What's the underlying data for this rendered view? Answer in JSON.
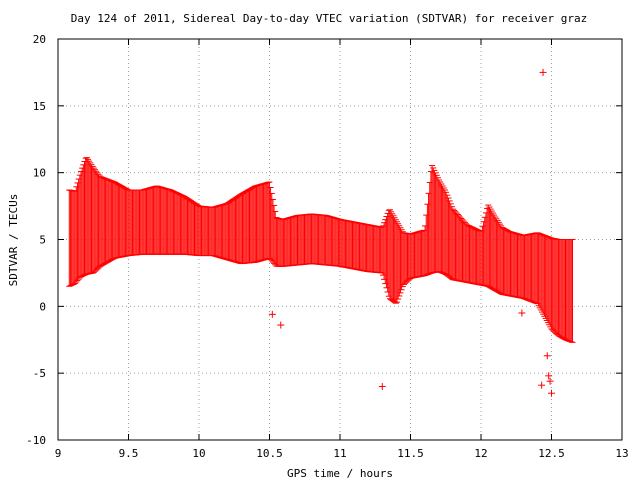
{
  "chart_data": {
    "type": "scatter",
    "title": "Day 124 of 2011, Sidereal Day-to-day VTEC variation (SDTVAR) for receiver graz",
    "xlabel": "GPS time / hours",
    "ylabel": "SDTVAR / TECUs",
    "xlim": [
      9,
      13
    ],
    "ylim": [
      -10,
      20
    ],
    "x_ticks": [
      "9",
      "9.5",
      "10",
      "10.5",
      "11",
      "11.5",
      "12",
      "12.5",
      "13"
    ],
    "y_ticks": [
      "-10",
      "-5",
      "0",
      "5",
      "10",
      "15",
      "20"
    ],
    "grid": true,
    "marker_color": "#ff0000",
    "series": [
      {
        "style": "error bars (mean with upper and lower bounds)",
        "x": [
          9.08,
          9.12,
          9.16,
          9.2,
          9.25,
          9.3,
          9.35,
          9.4,
          9.5,
          9.6,
          9.7,
          9.8,
          9.9,
          10.0,
          10.1,
          10.2,
          10.3,
          10.4,
          10.5,
          10.55,
          10.6,
          10.7,
          10.8,
          10.9,
          11.0,
          11.1,
          11.2,
          11.3,
          11.35,
          11.4,
          11.45,
          11.5,
          11.6,
          11.65,
          11.7,
          11.75,
          11.8,
          11.9,
          12.0,
          12.05,
          12.1,
          12.15,
          12.2,
          12.3,
          12.4,
          12.5,
          12.55,
          12.6,
          12.65
        ],
        "upper": [
          8.7,
          8.6,
          10.0,
          11.2,
          10.4,
          9.7,
          9.5,
          9.3,
          8.7,
          8.7,
          9.0,
          8.7,
          8.2,
          7.5,
          7.4,
          7.7,
          8.4,
          9.0,
          9.3,
          6.6,
          6.5,
          6.8,
          6.9,
          6.8,
          6.5,
          6.3,
          6.1,
          5.9,
          7.3,
          6.4,
          5.5,
          5.4,
          5.7,
          10.6,
          9.5,
          8.6,
          7.3,
          6.1,
          5.6,
          7.6,
          6.7,
          5.9,
          5.6,
          5.3,
          5.5,
          5.1,
          5.0,
          5.0,
          5.0
        ],
        "lower": [
          1.5,
          1.7,
          2.2,
          2.4,
          2.5,
          3.0,
          3.3,
          3.6,
          3.8,
          3.9,
          3.9,
          3.9,
          3.9,
          3.8,
          3.8,
          3.5,
          3.2,
          3.3,
          3.6,
          3.0,
          3.0,
          3.1,
          3.2,
          3.1,
          3.0,
          2.8,
          2.6,
          2.5,
          0.6,
          0.2,
          1.6,
          2.1,
          2.3,
          2.5,
          2.6,
          2.4,
          2.0,
          1.8,
          1.6,
          1.5,
          1.2,
          0.9,
          0.8,
          0.6,
          0.2,
          -1.7,
          -2.2,
          -2.5,
          -2.7
        ]
      },
      {
        "style": "isolated points",
        "x": [
          10.52,
          10.58,
          11.3,
          12.29,
          12.44,
          12.43,
          12.47,
          12.48,
          12.49,
          12.5
        ],
        "y": [
          -0.6,
          -1.4,
          -6.0,
          -0.5,
          17.5,
          -5.9,
          -3.7,
          -5.2,
          -5.6,
          -6.5
        ]
      }
    ]
  }
}
